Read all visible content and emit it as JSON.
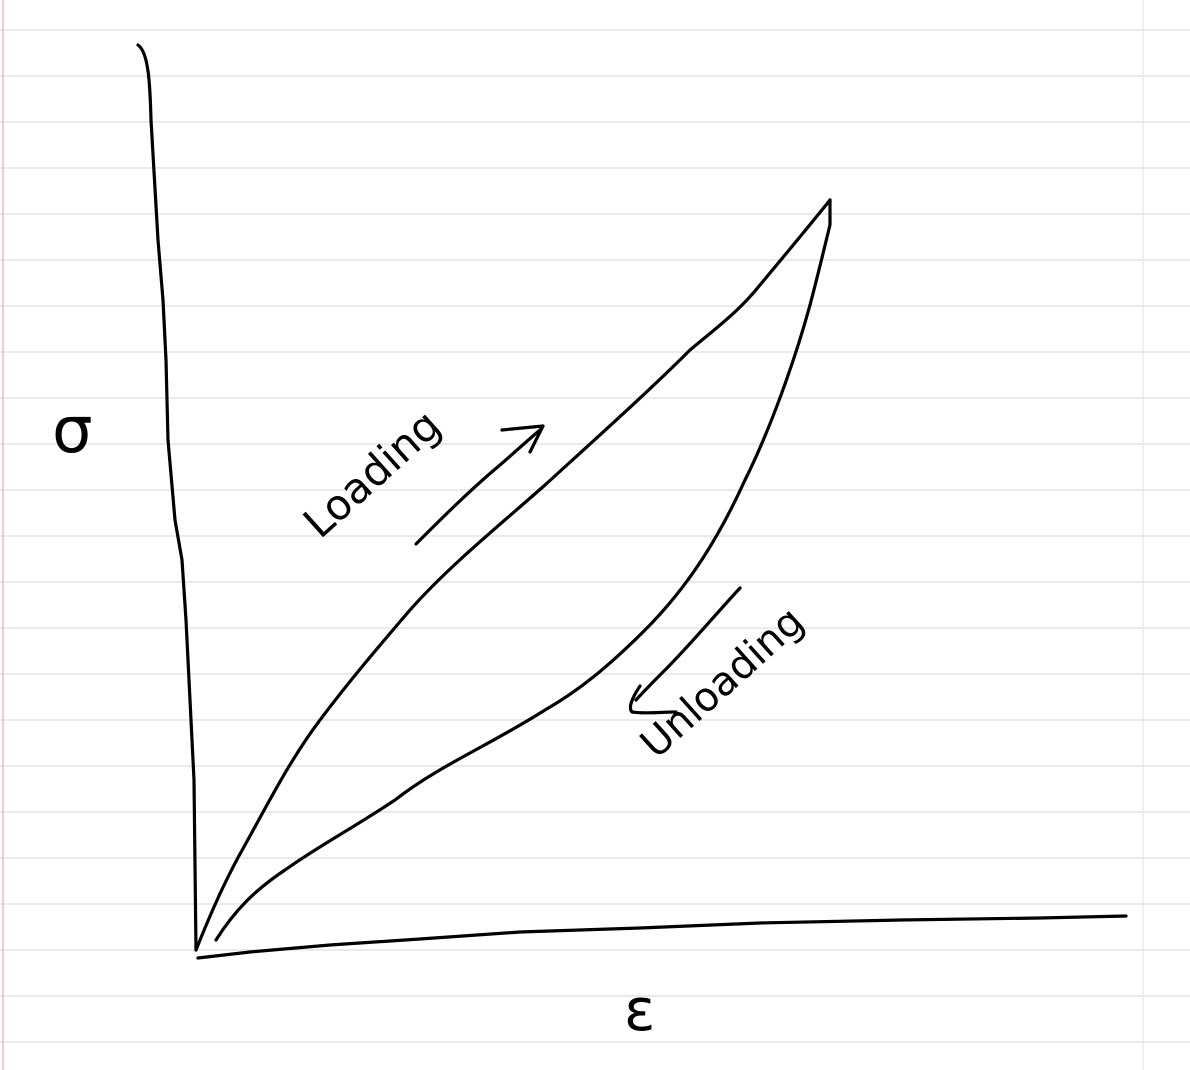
{
  "diagram": {
    "y_axis_label": "σ",
    "x_axis_label": "ε",
    "loading_label": "Loading",
    "unloading_label": "Unloading"
  },
  "colors": {
    "ink": "#000000",
    "paper": "#ffffff",
    "rule_lines": "#d6d6d6",
    "margin_line": "#f0b8c0"
  }
}
